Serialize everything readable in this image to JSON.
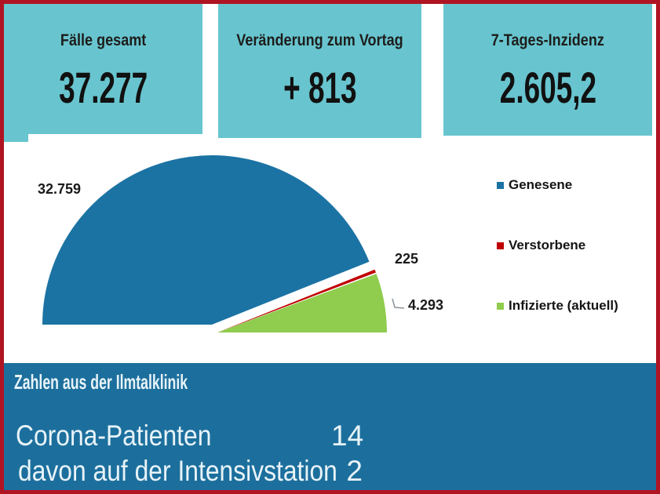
{
  "theme": {
    "card_bg": "#68c5cf",
    "bar_bg": "#1c6f9d",
    "border": "#b01423",
    "bar_text": "#e8f3f8"
  },
  "kpi_cards": [
    {
      "label": "Fälle gesamt",
      "value": "37.277"
    },
    {
      "label": "Veränderung zum Vortag",
      "value": "+ 813"
    },
    {
      "label": "7-Tages-Inzidenz",
      "value": "2.605,2"
    }
  ],
  "chart_data": {
    "type": "pie",
    "variant": "half-pie",
    "categories": [
      "Genesene",
      "Verstorbene",
      "Infizierte (aktuell)"
    ],
    "values": [
      32759,
      225,
      4293
    ],
    "labels": [
      "32.759",
      "225",
      "4.293"
    ],
    "colors": [
      "#1b73a3",
      "#c00000",
      "#90cc4e"
    ],
    "total": 37277,
    "legend_position": "right",
    "start_angle_deg": 180,
    "end_angle_deg": 0
  },
  "clinic": {
    "title": "Zahlen aus der Ilmtalklinik",
    "rows": [
      {
        "label": "Corona-Patienten",
        "value": "14"
      },
      {
        "label": "davon auf der Intensivstation",
        "value": "2"
      }
    ]
  }
}
